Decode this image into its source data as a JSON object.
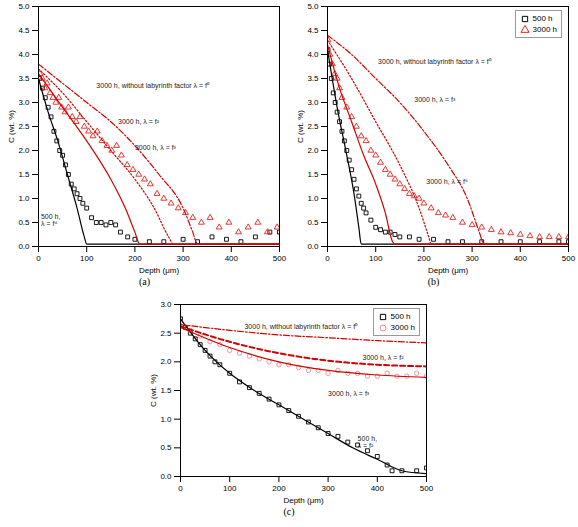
{
  "chart_data": [
    {
      "type": "line",
      "title": "(a)",
      "x_label": "Depth (μm)",
      "y_label": "C (wt. %)",
      "xlim": [
        0,
        500
      ],
      "xticks": [
        0,
        100,
        200,
        300,
        400,
        500
      ],
      "ylim": [
        0,
        5
      ],
      "yticks": [
        {
          "value": 0,
          "label": "0.0"
        },
        {
          "value": 0.5,
          "label": "0.5"
        },
        {
          "value": 1,
          "label": "1.0"
        },
        {
          "value": 1.5,
          "label": "1.5"
        },
        {
          "value": 2,
          "label": "2.0"
        },
        {
          "value": 2.5,
          "label": "2.5"
        },
        {
          "value": 3,
          "label": "3.0"
        },
        {
          "value": 3.5,
          "label": "3.5"
        },
        {
          "value": 4,
          "label": "4.0"
        },
        {
          "value": 4.5,
          "label": "4.5"
        },
        {
          "value": 5,
          "label": "5.0"
        }
      ],
      "grid": false,
      "series": [
        {
          "type": "scatter",
          "marker": "square",
          "color": "#000000",
          "x": [
            2,
            8,
            14,
            20,
            26,
            32,
            38,
            44,
            50,
            56,
            62,
            68,
            74,
            80,
            86,
            92,
            100,
            110,
            120,
            130,
            140,
            150,
            160,
            170,
            185,
            200,
            230,
            260,
            300,
            330,
            360,
            390,
            420,
            450,
            480,
            500
          ],
          "values": [
            3.5,
            3.3,
            3.1,
            2.9,
            2.7,
            2.4,
            2.2,
            2.0,
            1.9,
            1.7,
            1.5,
            1.3,
            1.2,
            1.1,
            1.0,
            0.9,
            0.8,
            0.6,
            0.5,
            0.5,
            0.45,
            0.5,
            0.45,
            0.3,
            0.2,
            0.15,
            0.1,
            0.1,
            0.15,
            0.1,
            0.2,
            0.15,
            0.1,
            0.2,
            0.3,
            0.3
          ]
        },
        {
          "type": "scatter",
          "marker": "triangle",
          "color": "#e8201c",
          "x": [
            3,
            8,
            13,
            18,
            24,
            30,
            36,
            42,
            48,
            55,
            62,
            70,
            78,
            86,
            95,
            104,
            113,
            122,
            132,
            142,
            152,
            162,
            172,
            184,
            196,
            208,
            220,
            232,
            246,
            260,
            275,
            290,
            305,
            320,
            338,
            356,
            375,
            395,
            415,
            435,
            455,
            475,
            495
          ],
          "values": [
            3.6,
            3.5,
            3.3,
            3.4,
            3.2,
            3.1,
            3.0,
            3.1,
            2.9,
            2.8,
            2.9,
            2.7,
            2.6,
            2.7,
            2.5,
            2.4,
            2.3,
            2.4,
            2.2,
            2.1,
            2.0,
            2.1,
            1.9,
            1.7,
            1.6,
            1.5,
            1.4,
            1.3,
            1.1,
            1.0,
            0.9,
            0.8,
            0.7,
            0.6,
            0.5,
            0.6,
            0.4,
            0.5,
            0.3,
            0.4,
            0.5,
            0.3,
            0.4
          ]
        },
        {
          "type": "line",
          "line_style": "solid",
          "color": "#000000",
          "x": [
            0,
            20,
            40,
            60,
            80,
            95,
            100,
            500
          ],
          "values": [
            3.5,
            2.8,
            2.2,
            1.5,
            0.8,
            0.2,
            0.05,
            0.05
          ]
        },
        {
          "type": "line",
          "line_style": "solid",
          "color": "#d40000",
          "x": [
            0,
            50,
            100,
            150,
            180,
            200,
            210,
            500
          ],
          "values": [
            3.6,
            2.9,
            2.2,
            1.4,
            0.8,
            0.3,
            0.05,
            0.05
          ]
        },
        {
          "type": "line",
          "line_style": "dotted",
          "color": "#d40000",
          "x": [
            0,
            50,
            100,
            150,
            200,
            240,
            270,
            280,
            500
          ],
          "values": [
            3.7,
            3.2,
            2.6,
            2.0,
            1.4,
            0.8,
            0.2,
            0.05,
            0.05
          ]
        },
        {
          "type": "line",
          "line_style": "dashdot",
          "color": "#d40000",
          "x": [
            0,
            50,
            100,
            150,
            200,
            250,
            300,
            320,
            330,
            500
          ],
          "values": [
            3.8,
            3.4,
            3.0,
            2.6,
            2.1,
            1.5,
            0.8,
            0.3,
            0.05,
            0.05
          ]
        }
      ],
      "annotations": [
        {
          "text": "3000 h, without labyrinth factor λ = f⁰",
          "x": 120,
          "y": 3.35
        },
        {
          "text": "3000 h, λ = f²",
          "x": 165,
          "y": 2.6
        },
        {
          "text": "3000 h, λ = f³",
          "x": 200,
          "y": 2.05
        },
        {
          "text": "500 h,\nλ = f⁴",
          "x": 5,
          "y": 0.55
        }
      ]
    },
    {
      "type": "line",
      "title": "(b)",
      "x_label": "Depth (μm)",
      "y_label": "C (wt. %)",
      "xlim": [
        0,
        500
      ],
      "xticks": [
        0,
        100,
        200,
        300,
        400,
        500
      ],
      "ylim": [
        0,
        5
      ],
      "yticks": [
        {
          "value": 0,
          "label": "0.0"
        },
        {
          "value": 0.5,
          "label": "0.5"
        },
        {
          "value": 1,
          "label": "1.0"
        },
        {
          "value": 1.5,
          "label": "1.5"
        },
        {
          "value": 2,
          "label": "2.0"
        },
        {
          "value": 2.5,
          "label": "2.5"
        },
        {
          "value": 3,
          "label": "3.0"
        },
        {
          "value": 3.5,
          "label": "3.5"
        },
        {
          "value": 4,
          "label": "4.0"
        },
        {
          "value": 4.5,
          "label": "4.5"
        },
        {
          "value": 5,
          "label": "5.0"
        }
      ],
      "grid": false,
      "legend": "top-right",
      "series": [
        {
          "name": "500 h",
          "type": "scatter",
          "marker": "square",
          "color": "#000000",
          "x": [
            1,
            4,
            8,
            12,
            16,
            20,
            25,
            30,
            35,
            40,
            45,
            50,
            55,
            60,
            65,
            70,
            75,
            80,
            90,
            100,
            110,
            120,
            130,
            140,
            150,
            170,
            190,
            220,
            250,
            280,
            320,
            360,
            400,
            440,
            480,
            500
          ],
          "values": [
            4.1,
            3.8,
            3.5,
            3.2,
            3.0,
            2.8,
            2.6,
            2.4,
            2.2,
            2.0,
            1.8,
            1.6,
            1.4,
            1.2,
            1.05,
            0.9,
            0.8,
            0.7,
            0.55,
            0.4,
            0.35,
            0.3,
            0.3,
            0.25,
            0.2,
            0.2,
            0.15,
            0.15,
            0.1,
            0.1,
            0.1,
            0.1,
            0.1,
            0.1,
            0.1,
            0.1
          ]
        },
        {
          "name": "3000 h",
          "type": "scatter",
          "marker": "triangle",
          "color": "#e8201c",
          "x": [
            1,
            5,
            10,
            15,
            20,
            25,
            30,
            40,
            50,
            60,
            70,
            80,
            90,
            100,
            110,
            120,
            130,
            140,
            150,
            160,
            170,
            180,
            190,
            200,
            215,
            230,
            245,
            260,
            280,
            300,
            320,
            340,
            360,
            380,
            400,
            420,
            440,
            460,
            480,
            500
          ],
          "values": [
            4.3,
            4.0,
            3.8,
            3.6,
            3.5,
            3.3,
            3.1,
            2.9,
            2.7,
            2.5,
            2.3,
            2.2,
            2.0,
            1.9,
            1.75,
            1.6,
            1.5,
            1.4,
            1.3,
            1.2,
            1.1,
            1.05,
            1.0,
            0.9,
            0.8,
            0.7,
            0.65,
            0.6,
            0.5,
            0.45,
            0.4,
            0.35,
            0.3,
            0.28,
            0.25,
            0.22,
            0.2,
            0.2,
            0.2,
            0.2
          ]
        },
        {
          "type": "line",
          "line_style": "solid",
          "color": "#000000",
          "x": [
            0,
            20,
            40,
            55,
            65,
            70,
            500
          ],
          "values": [
            4.1,
            2.9,
            1.9,
            1.1,
            0.4,
            0.05,
            0.05
          ]
        },
        {
          "type": "line",
          "line_style": "solid",
          "color": "#d40000",
          "x": [
            0,
            25,
            50,
            75,
            100,
            120,
            135,
            140,
            500
          ],
          "values": [
            4.2,
            3.3,
            2.6,
            1.9,
            1.3,
            0.7,
            0.1,
            0.05,
            0.05
          ]
        },
        {
          "type": "line",
          "line_style": "dotted",
          "color": "#d40000",
          "x": [
            0,
            50,
            100,
            150,
            190,
            210,
            215,
            500
          ],
          "values": [
            4.3,
            3.5,
            2.6,
            1.7,
            0.8,
            0.2,
            0.05,
            0.05
          ]
        },
        {
          "type": "line",
          "line_style": "dashdot",
          "color": "#d40000",
          "x": [
            0,
            50,
            100,
            150,
            200,
            250,
            290,
            315,
            325,
            500
          ],
          "values": [
            4.4,
            4.0,
            3.5,
            3.0,
            2.4,
            1.7,
            1.0,
            0.3,
            0.05,
            0.05
          ]
        }
      ],
      "annotations": [
        {
          "text": "3000 h, without labyrinth factor λ = f⁰",
          "x": 105,
          "y": 3.85
        },
        {
          "text": "3000 h, λ = f³",
          "x": 180,
          "y": 3.05
        },
        {
          "text": "3000 h, λ = f⁶",
          "x": 205,
          "y": 1.35
        }
      ]
    },
    {
      "type": "line",
      "title": "(c)",
      "x_label": "Depth (μm)",
      "y_label": "C (wt. %)",
      "xlim": [
        0,
        500
      ],
      "xticks": [
        0,
        100,
        200,
        300,
        400,
        500
      ],
      "ylim": [
        0,
        3
      ],
      "yticks": [
        {
          "value": 0,
          "label": "0.0"
        },
        {
          "value": 0.5,
          "label": "0.5"
        },
        {
          "value": 1,
          "label": "1.0"
        },
        {
          "value": 1.5,
          "label": "1.5"
        },
        {
          "value": 2,
          "label": "2.0"
        },
        {
          "value": 2.5,
          "label": "2.5"
        },
        {
          "value": 3,
          "label": "3.0"
        }
      ],
      "grid": false,
      "legend": "top-right",
      "series": [
        {
          "name": "500 h",
          "type": "scatter",
          "marker": "square",
          "color": "#000000",
          "x": [
            0,
            10,
            20,
            30,
            40,
            50,
            60,
            70,
            80,
            100,
            120,
            140,
            160,
            180,
            200,
            220,
            240,
            260,
            280,
            300,
            320,
            340,
            360,
            380,
            400,
            420,
            430,
            450,
            480,
            500
          ],
          "values": [
            2.75,
            2.6,
            2.5,
            2.4,
            2.3,
            2.2,
            2.1,
            2.0,
            1.95,
            1.8,
            1.65,
            1.55,
            1.45,
            1.35,
            1.25,
            1.15,
            1.05,
            0.95,
            0.85,
            0.75,
            0.7,
            0.6,
            0.55,
            0.45,
            0.35,
            0.2,
            0.1,
            0.1,
            0.1,
            0.15
          ]
        },
        {
          "name": "3000 h",
          "type": "scatter",
          "marker": "circle",
          "color": "#f28a8a",
          "x": [
            0,
            20,
            40,
            60,
            80,
            100,
            120,
            140,
            160,
            180,
            200,
            220,
            240,
            260,
            280,
            300,
            320,
            340,
            360,
            380,
            400,
            420,
            440,
            460,
            480,
            500
          ],
          "values": [
            2.7,
            2.55,
            2.45,
            2.35,
            2.3,
            2.2,
            2.15,
            2.1,
            2.05,
            2.0,
            1.95,
            1.95,
            1.9,
            1.85,
            1.85,
            1.8,
            1.85,
            1.8,
            1.8,
            1.75,
            1.75,
            1.8,
            1.75,
            1.75,
            1.8,
            1.75
          ]
        },
        {
          "type": "line",
          "line_style": "solid",
          "color": "#000000",
          "x": [
            0,
            50,
            100,
            150,
            200,
            250,
            300,
            350,
            400,
            450,
            500
          ],
          "values": [
            2.75,
            2.2,
            1.8,
            1.5,
            1.25,
            1.0,
            0.75,
            0.5,
            0.3,
            0.1,
            0.05
          ]
        },
        {
          "type": "line",
          "line_style": "solid",
          "color": "#d40000",
          "x": [
            0,
            100,
            200,
            300,
            400,
            500
          ],
          "values": [
            2.6,
            2.25,
            2.0,
            1.85,
            1.77,
            1.73
          ]
        },
        {
          "type": "line",
          "line_style": "dashed",
          "color": "#d40000",
          "x": [
            0,
            100,
            200,
            300,
            400,
            500
          ],
          "values": [
            2.62,
            2.35,
            2.15,
            2.02,
            1.95,
            1.92
          ]
        },
        {
          "type": "line",
          "line_style": "dashdot",
          "color": "#d40000",
          "x": [
            0,
            100,
            200,
            300,
            400,
            500
          ],
          "values": [
            2.65,
            2.55,
            2.47,
            2.42,
            2.37,
            2.33
          ]
        }
      ],
      "annotations": [
        {
          "text": "3000 h, without labyrinth factor λ = f⁰",
          "x": 130,
          "y": 2.62
        },
        {
          "text": "3000 h, λ = f²",
          "x": 370,
          "y": 2.07
        },
        {
          "text": "3000 h, λ = f³",
          "x": 300,
          "y": 1.45
        },
        {
          "text": "500 h,\nλ = f²",
          "x": 360,
          "y": 0.6
        }
      ]
    }
  ]
}
